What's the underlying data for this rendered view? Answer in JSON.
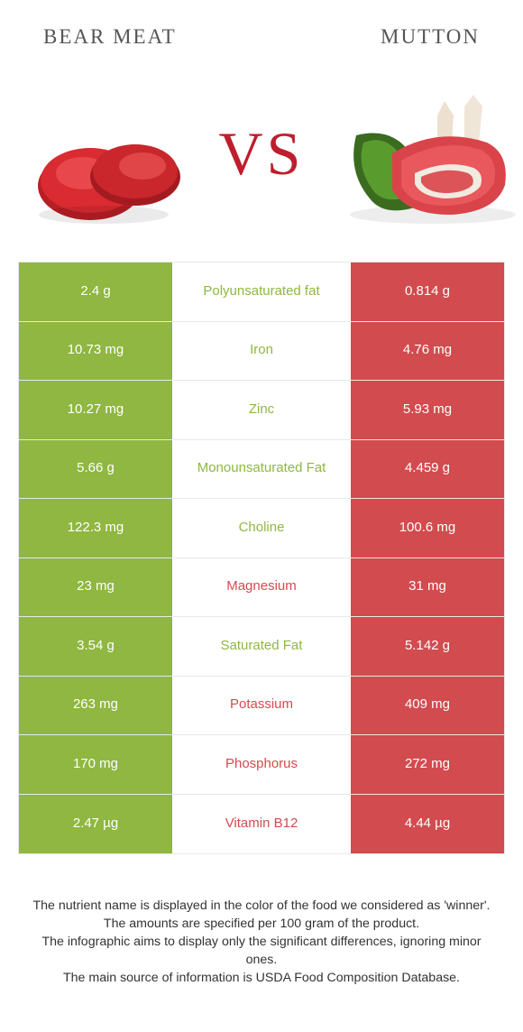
{
  "colors": {
    "left_bg": "#8fb741",
    "right_bg": "#d24b4e",
    "left_text": "#8fb741",
    "right_text": "#d24b4e",
    "vs": "#be1e2d",
    "title": "#555555",
    "border": "#e8e8e8",
    "body_text": "#333333"
  },
  "header": {
    "left": "BEAR MEAT",
    "right": "MUTTON",
    "vs": "VS"
  },
  "rows": [
    {
      "left": "2.4 g",
      "mid": "Polyunsaturated fat",
      "right": "0.814 g",
      "winner": "left"
    },
    {
      "left": "10.73 mg",
      "mid": "Iron",
      "right": "4.76 mg",
      "winner": "left"
    },
    {
      "left": "10.27 mg",
      "mid": "Zinc",
      "right": "5.93 mg",
      "winner": "left"
    },
    {
      "left": "5.66 g",
      "mid": "Monounsaturated Fat",
      "right": "4.459 g",
      "winner": "left"
    },
    {
      "left": "122.3 mg",
      "mid": "Choline",
      "right": "100.6 mg",
      "winner": "left"
    },
    {
      "left": "23 mg",
      "mid": "Magnesium",
      "right": "31 mg",
      "winner": "right"
    },
    {
      "left": "3.54 g",
      "mid": "Saturated Fat",
      "right": "5.142 g",
      "winner": "left"
    },
    {
      "left": "263 mg",
      "mid": "Potassium",
      "right": "409 mg",
      "winner": "right"
    },
    {
      "left": "170 mg",
      "mid": "Phosphorus",
      "right": "272 mg",
      "winner": "right"
    },
    {
      "left": "2.47 µg",
      "mid": "Vitamin B12",
      "right": "4.44 µg",
      "winner": "right"
    }
  ],
  "footer": {
    "l1": "The nutrient name is displayed in the color of the food we considered as 'winner'.",
    "l2": "The amounts are specified per 100 gram of the product.",
    "l3": "The infographic aims to display only the significant differences, ignoring minor ones.",
    "l4": "The main source of information is USDA Food Composition Database."
  }
}
